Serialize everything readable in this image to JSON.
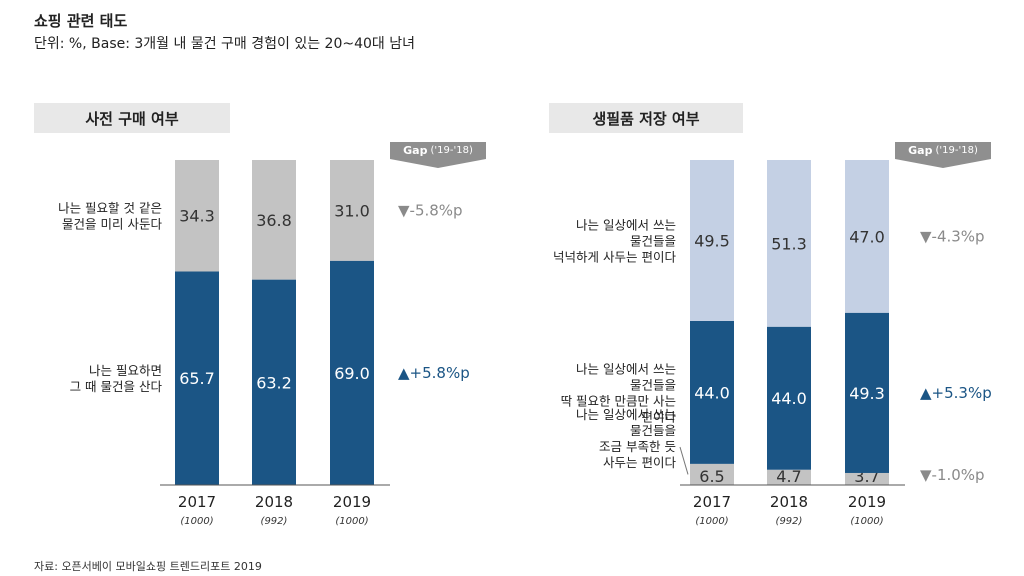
{
  "header": {
    "title": "쇼핑 관련 태도",
    "subtitle": "단위: %, Base: 3개월 내 물건 구매 경험이 있는 20~40대 남녀"
  },
  "gap_label": {
    "main": "Gap",
    "sub": "('19-'18)"
  },
  "footer": "자료: 오픈서베이 모바일쇼핑 트렌드리포트 2019",
  "colors": {
    "dark": "#1b5585",
    "gray": "#c3c3c3",
    "light": "#c4d0e4",
    "up": "#1b5585",
    "down": "#8a8a8a"
  },
  "chart_data": [
    {
      "type": "bar",
      "stacked": true,
      "title": "사전 구매 여부",
      "categories": [
        "2017",
        "2018",
        "2019"
      ],
      "base_counts": [
        "(1000)",
        "(992)",
        "(1000)"
      ],
      "ylim": [
        0,
        100
      ],
      "series": [
        {
          "name": "나는 필요하면\n그 때 물건을 산다",
          "values": [
            65.7,
            63.2,
            69.0
          ],
          "color": "#1b5585",
          "text_color": "#ffffff"
        },
        {
          "name": "나는 필요할 것 같은\n물건을 미리 사둔다",
          "values": [
            34.3,
            36.8,
            31.0
          ],
          "color": "#c3c3c3",
          "text_color": "#333333"
        }
      ],
      "gaps": [
        "+5.8%p",
        "-5.8%p"
      ],
      "gap_directions": [
        "up",
        "down"
      ]
    },
    {
      "type": "bar",
      "stacked": true,
      "title": "생필품 저장 여부",
      "categories": [
        "2017",
        "2018",
        "2019"
      ],
      "base_counts": [
        "(1000)",
        "(992)",
        "(1000)"
      ],
      "ylim": [
        0,
        100
      ],
      "series": [
        {
          "name": "나는 일상에서 쓰는\n물건들을\n조금 부족한 듯\n사두는 편이다",
          "values": [
            6.5,
            4.7,
            3.7
          ],
          "color": "#c3c3c3",
          "text_color": "#333333"
        },
        {
          "name": "나는 일상에서 쓰는\n물건들을\n딱 필요한 만큼만 사는\n편이다",
          "values": [
            44.0,
            44.0,
            49.3
          ],
          "color": "#1b5585",
          "text_color": "#ffffff"
        },
        {
          "name": "나는 일상에서 쓰는\n물건들을\n넉넉하게 사두는 편이다",
          "values": [
            49.5,
            51.3,
            47.0
          ],
          "color": "#c4d0e4",
          "text_color": "#333333"
        }
      ],
      "gaps": [
        "-1.0%p",
        "+5.3%p",
        "-4.3%p"
      ],
      "gap_directions": [
        "down",
        "up",
        "down"
      ]
    }
  ]
}
